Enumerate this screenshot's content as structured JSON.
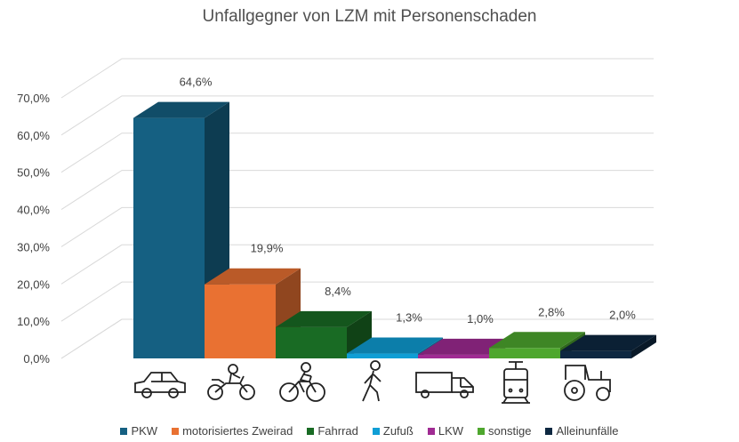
{
  "chart_data": {
    "type": "bar",
    "title": "Unfallgegner von LZM mit Personenschaden",
    "categories": [
      "PKW",
      "motorisiertes Zweirad",
      "Fahrrad",
      "Zufuß",
      "LKW",
      "sonstige",
      "Alleinunfälle"
    ],
    "values": [
      64.6,
      19.9,
      8.4,
      1.3,
      1.0,
      2.8,
      2.0
    ],
    "data_labels": [
      "64,6%",
      "19,9%",
      "8,4%",
      "1,3%",
      "1,0%",
      "2,8%",
      "2,0%"
    ],
    "colors": [
      "#156082",
      "#E97132",
      "#196B24",
      "#0F9ED5",
      "#A02B93",
      "#4EA72E",
      "#0E2841"
    ],
    "icons": [
      "car-icon",
      "motorcycle-icon",
      "bicycle-icon",
      "pedestrian-icon",
      "truck-icon",
      "tram-icon",
      "tractor-icon"
    ],
    "ytick_labels": [
      "0,0%",
      "10,0%",
      "20,0%",
      "30,0%",
      "40,0%",
      "50,0%",
      "60,0%",
      "70,0%"
    ],
    "ylim": [
      0,
      70
    ],
    "legend_position": "bottom",
    "grid": true,
    "style": "3d-column"
  }
}
